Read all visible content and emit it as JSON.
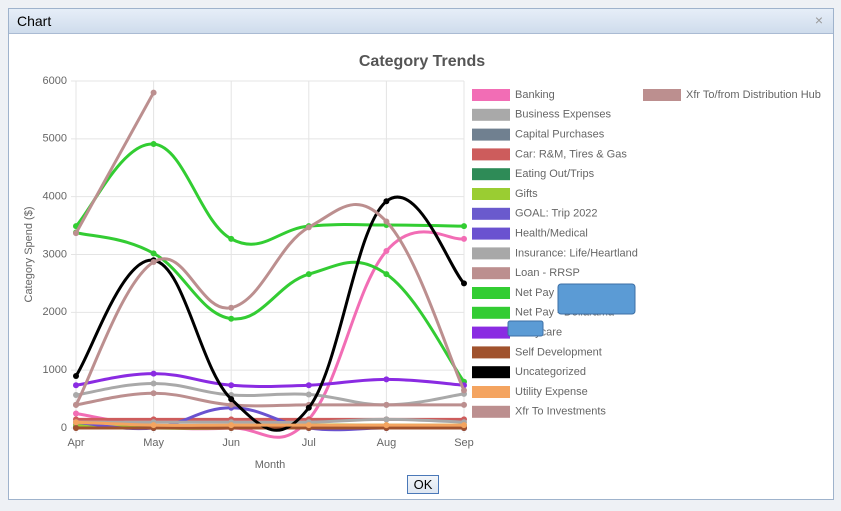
{
  "dialog": {
    "title": "Chart",
    "close": "×",
    "ok_button": "OK"
  },
  "chart_data": {
    "type": "line",
    "title": "Category Trends",
    "x_label": "Month",
    "y_label": "Category Spend ($)",
    "categories": [
      "Apr",
      "May",
      "Jun",
      "Jul",
      "Aug",
      "Sep"
    ],
    "ylim": [
      0,
      6000
    ],
    "yticks": [
      0,
      1000,
      2000,
      3000,
      4000,
      5000,
      6000
    ],
    "grid": true,
    "legend": "right",
    "series": [
      {
        "name": "Banking",
        "color": "#f26db5",
        "values": [
          250,
          30,
          0,
          150,
          3060,
          3270
        ]
      },
      {
        "name": "Business Expenses",
        "color": "#a9a9a9",
        "values": [
          570,
          770,
          570,
          580,
          400,
          590
        ]
      },
      {
        "name": "Capital Purchases",
        "color": "#708090",
        "values": [
          50,
          0,
          30,
          0,
          0,
          0
        ]
      },
      {
        "name": "Car: R&M, Tires & Gas",
        "color": "#cd5c5c",
        "values": [
          150,
          150,
          150,
          150,
          150,
          150
        ]
      },
      {
        "name": "Eating Out/Trips",
        "color": "#2e8b57",
        "values": [
          20,
          20,
          20,
          20,
          20,
          20
        ]
      },
      {
        "name": "Gifts",
        "color": "#9acd32",
        "values": [
          50,
          0,
          0,
          50,
          50,
          50
        ]
      },
      {
        "name": "GOAL: Trip 2022",
        "color": "#6a5acd",
        "values": [
          0,
          0,
          0,
          0,
          0,
          0
        ]
      },
      {
        "name": "Health/Medical",
        "color": "#6a52d0",
        "values": [
          100,
          0,
          350,
          0,
          0,
          0
        ]
      },
      {
        "name": "Insurance: Life/Heartland",
        "color": "#a8a8a8",
        "values": [
          100,
          100,
          100,
          100,
          150,
          100
        ]
      },
      {
        "name": "Loan - RRSP",
        "color": "#bc8f8f",
        "values": [
          400,
          600,
          400,
          400,
          400,
          400
        ]
      },
      {
        "name": "Net Pay -",
        "color": "#32cd32",
        "values": [
          3490,
          4910,
          3270,
          3490,
          3510,
          3490
        ]
      },
      {
        "name": "Net Pay - Dollarama",
        "color": "#33cc33",
        "values": [
          3380,
          3020,
          1890,
          2660,
          2660,
          800
        ]
      },
      {
        "name": ": Daycare",
        "color": "#8a2be2",
        "values": [
          740,
          940,
          740,
          740,
          840,
          740
        ]
      },
      {
        "name": "Self Development",
        "color": "#a0522d",
        "values": [
          0,
          0,
          0,
          0,
          0,
          0
        ]
      },
      {
        "name": "Uncategorized",
        "color": "#000000",
        "values": [
          900,
          2900,
          500,
          350,
          3920,
          2500
        ]
      },
      {
        "name": "Utility Expense",
        "color": "#f4a460",
        "values": [
          100,
          50,
          50,
          50,
          50,
          50
        ]
      },
      {
        "name": "Xfr To Investments",
        "color": "#bc8f8f",
        "values": [
          400,
          2870,
          2080,
          3470,
          3570,
          650
        ]
      },
      {
        "name": "Xfr To/from Distribution Hub",
        "color": "#bc8f8f",
        "values": [
          3370,
          5800,
          null,
          null,
          null,
          null
        ]
      }
    ]
  }
}
